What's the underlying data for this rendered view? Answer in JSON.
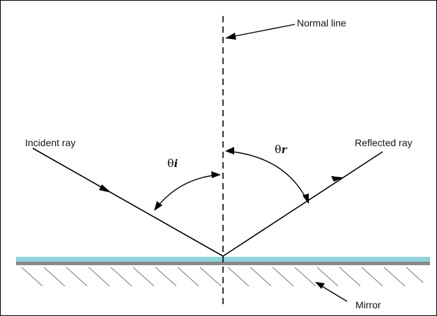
{
  "labels": {
    "normal_line": "Normal line",
    "incident_ray": "Incident  ray",
    "reflected_ray": "Reflected  ray",
    "mirror": "Mirror",
    "theta_i_symbol": "θ",
    "theta_i_sub": "i",
    "theta_r_symbol": "θ",
    "theta_r_sub": "r"
  },
  "colors": {
    "mirror_surface": "#8fd3dc",
    "mirror_back": "#8a8a8a",
    "hatch": "#777777",
    "line": "#000000"
  }
}
